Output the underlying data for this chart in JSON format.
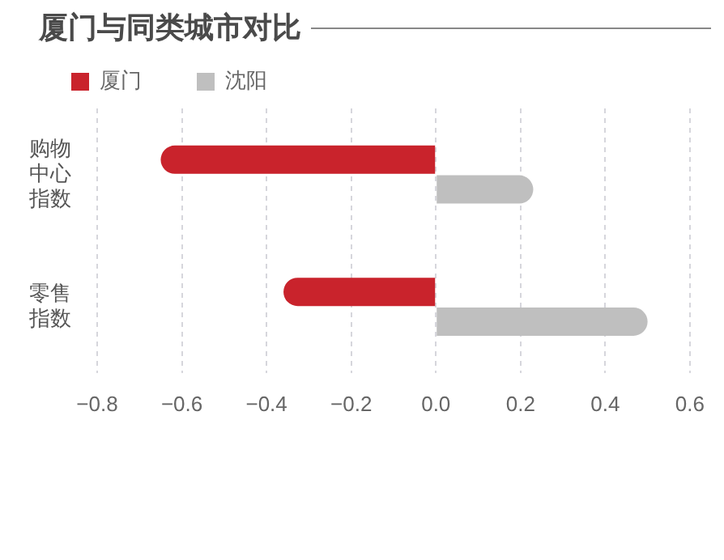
{
  "chart_data": {
    "type": "bar",
    "orientation": "horizontal",
    "title": "厦门与同类城市对比",
    "categories": [
      "购物中心指数",
      "零售指数"
    ],
    "series": [
      {
        "name": "厦门",
        "color": "#c9232c",
        "values": [
          -0.65,
          -0.36
        ]
      },
      {
        "name": "沈阳",
        "color": "#bfbfbf",
        "values": [
          0.23,
          0.5
        ]
      }
    ],
    "xlim": [
      -0.8,
      0.6
    ],
    "xticks": [
      {
        "value": -0.8,
        "label": "−0.8"
      },
      {
        "value": -0.6,
        "label": "−0.6"
      },
      {
        "value": -0.4,
        "label": "−0.4"
      },
      {
        "value": -0.2,
        "label": "−0.2"
      },
      {
        "value": 0,
        "label": "0.0"
      },
      0.2,
      0.4,
      0.6
    ],
    "grid": "x",
    "legend": "top left"
  }
}
